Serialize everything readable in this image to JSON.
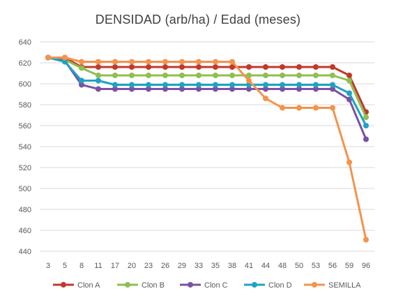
{
  "chart_data": {
    "type": "line",
    "title": "DENSIDAD (arb/ha) / Edad (meses)",
    "xlabel": "",
    "ylabel": "",
    "categories": [
      "3",
      "5",
      "8",
      "11",
      "17",
      "20",
      "23",
      "26",
      "29",
      "33",
      "35",
      "38",
      "41",
      "44",
      "48",
      "50",
      "53",
      "56",
      "59",
      "96"
    ],
    "ylim": [
      440,
      640
    ],
    "yticks": [
      440,
      460,
      480,
      500,
      520,
      540,
      560,
      580,
      600,
      620,
      640
    ],
    "grid": true,
    "legend_position": "bottom",
    "series": [
      {
        "name": "Clon A",
        "color": "#C0392B",
        "values": [
          625,
          625,
          616,
          616,
          616,
          616,
          616,
          616,
          616,
          616,
          616,
          616,
          616,
          616,
          616,
          616,
          616,
          616,
          608,
          573
        ]
      },
      {
        "name": "Clon B",
        "color": "#8DC04F",
        "values": [
          625,
          623,
          615,
          608,
          608,
          608,
          608,
          608,
          608,
          608,
          608,
          608,
          608,
          608,
          608,
          608,
          608,
          608,
          603,
          568
        ]
      },
      {
        "name": "Clon C",
        "color": "#7A52A0",
        "values": [
          625,
          622,
          599,
          595,
          595,
          595,
          595,
          595,
          595,
          595,
          595,
          595,
          595,
          595,
          595,
          595,
          595,
          595,
          585,
          547
        ]
      },
      {
        "name": "Clon D",
        "color": "#1FA3C4",
        "values": [
          625,
          621,
          603,
          603,
          599,
          599,
          599,
          599,
          599,
          599,
          599,
          599,
          599,
          599,
          599,
          599,
          599,
          599,
          591,
          560
        ]
      },
      {
        "name": "SEMILLA",
        "color": "#F5934B",
        "values": [
          625,
          625,
          621,
          621,
          621,
          621,
          621,
          621,
          621,
          621,
          621,
          621,
          603,
          586,
          577,
          577,
          577,
          577,
          525,
          451
        ]
      }
    ]
  }
}
